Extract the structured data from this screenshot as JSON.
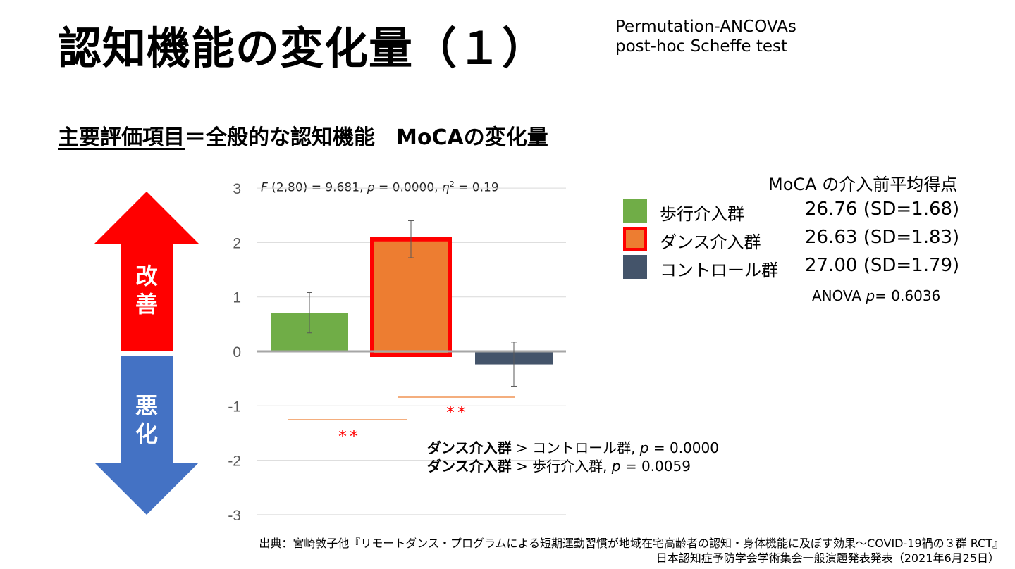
{
  "slide": {
    "title": "認知機能の変化量（１）",
    "stats_method": [
      "Permutation-ANCOVAs",
      "post-hoc Scheffe test"
    ],
    "subtitle_underlined": "主要評価項目",
    "subtitle_rest": "＝全般的な認知機能　MoCAの変化量"
  },
  "anova_f": {
    "F": "F",
    "df": " (2,80) = 9.681, ",
    "p": "p",
    "p_value": " = 0.0000, ",
    "eta": "η",
    "eta_sup": "2",
    "eta_value": " = 0.19"
  },
  "arrows": {
    "improve_label": [
      "改",
      "善"
    ],
    "worsen_label": [
      "悪",
      "化"
    ],
    "improve_color": "#ff0000",
    "worsen_color": "#4472c4"
  },
  "chart_data": {
    "type": "bar",
    "categories": [
      "歩行介入群",
      "ダンス介入群",
      "コントロール群"
    ],
    "values": [
      0.71,
      2.06,
      -0.24
    ],
    "error_low": [
      0.34,
      1.72,
      -0.64
    ],
    "error_high": [
      1.08,
      2.4,
      0.17
    ],
    "colors": [
      "#70ad47",
      "#ed7d31",
      "#44546a"
    ],
    "highlight_index": 1,
    "highlight_border": "#ff0000",
    "ylim": [
      -3,
      3
    ],
    "yticks": [
      "3",
      "2",
      "1",
      "0",
      "-1",
      "-2",
      "-3"
    ],
    "grid": true,
    "significance_marks": [
      "**",
      "**"
    ]
  },
  "legend": {
    "title": "MoCA の介入前平均得点",
    "items": [
      {
        "label": "歩行介入群",
        "value": "26.76 (SD=1.68)",
        "color": "#70ad47",
        "border": ""
      },
      {
        "label": "ダンス介入群",
        "value": "26.63 (SD=1.83)",
        "color": "#ed7d31",
        "border": "#ff0000"
      },
      {
        "label": "コントロール群",
        "value": "27.00 (SD=1.79)",
        "color": "#44546a",
        "border": ""
      }
    ],
    "anova_prefix": "ANOVA ",
    "anova_p": "p",
    "anova_value": "= 0.6036"
  },
  "comparisons": [
    {
      "group": "ダンス介入群",
      "rest": " > コントロール群, ",
      "p": "p",
      "value": " = 0.0000"
    },
    {
      "group": "ダンス介入群",
      "rest": " > 歩行介入群, ",
      "p": "p",
      "value": " = 0.0059"
    }
  ],
  "source": {
    "line1": "出典：宮崎敦子他『リモートダンス・プログラムによる短期運動習慣が地域在宅高齢者の認知・身体機能に及ぼす効果～COVID-19禍の３群 RCT』",
    "line2": "日本認知症予防学会学術集会一般演題発表発表（2021年6月25日）"
  }
}
